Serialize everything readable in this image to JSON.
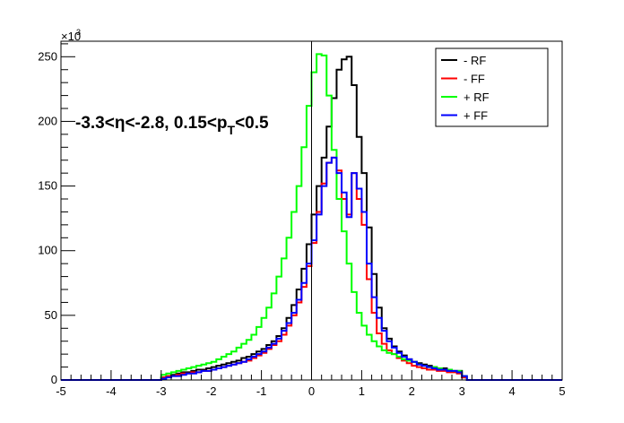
{
  "chart_data": {
    "type": "line",
    "title": "",
    "xlabel": "",
    "ylabel": "",
    "xlim": [
      -5,
      5
    ],
    "ylim": [
      0,
      262
    ],
    "y_multiplier_label": "×10",
    "y_multiplier_exp": "3",
    "grid": false,
    "legend_position": "top-right",
    "annotation": {
      "part1": "-3.3<η<-2.8, 0.15<p",
      "sub": "T",
      "part2": "<0.5"
    },
    "x_ticks": [
      "-5",
      "-4",
      "-3",
      "-2",
      "-1",
      "0",
      "1",
      "2",
      "3",
      "4",
      "5"
    ],
    "y_ticks": [
      "0",
      "50",
      "100",
      "150",
      "200",
      "250"
    ],
    "bin_width": 0.1,
    "x_start": -5.0,
    "series": [
      {
        "name": "- RF",
        "color": "#000000",
        "values": [
          0,
          0,
          0,
          0,
          0,
          0,
          0,
          0,
          0,
          0,
          0,
          0,
          0,
          0,
          0,
          0,
          0,
          0,
          0,
          0,
          2,
          3,
          4,
          5,
          6,
          6,
          7,
          8,
          8,
          9,
          10,
          11,
          12,
          13,
          14,
          15,
          17,
          18,
          20,
          22,
          24,
          27,
          30,
          34,
          40,
          48,
          58,
          70,
          86,
          105,
          128,
          150,
          172,
          196,
          218,
          240,
          248,
          250,
          228,
          188,
          160,
          118,
          82,
          56,
          40,
          32,
          26,
          22,
          19,
          16,
          14,
          13,
          12,
          11,
          10,
          9,
          9,
          8,
          7,
          7,
          2,
          0,
          0,
          0,
          0,
          0,
          0,
          0,
          0,
          0,
          0,
          0,
          0,
          0,
          0,
          0,
          0,
          0,
          0,
          0
        ]
      },
      {
        "name": "- FF",
        "color": "#ff0000",
        "values": [
          0,
          0,
          0,
          0,
          0,
          0,
          0,
          0,
          0,
          0,
          0,
          0,
          0,
          0,
          0,
          0,
          0,
          0,
          0,
          0,
          2,
          3,
          3,
          4,
          5,
          5,
          6,
          6,
          7,
          7,
          8,
          9,
          10,
          11,
          12,
          13,
          14,
          15,
          17,
          19,
          21,
          24,
          27,
          30,
          35,
          42,
          50,
          60,
          72,
          88,
          106,
          130,
          152,
          168,
          172,
          162,
          140,
          128,
          160,
          140,
          120,
          78,
          52,
          36,
          28,
          23,
          20,
          17,
          15,
          13,
          11,
          10,
          9,
          8,
          8,
          7,
          7,
          6,
          6,
          5,
          2,
          0,
          0,
          0,
          0,
          0,
          0,
          0,
          0,
          0,
          0,
          0,
          0,
          0,
          0,
          0,
          0,
          0,
          0,
          0
        ]
      },
      {
        "name": "+ RF",
        "color": "#00ff00",
        "values": [
          0,
          0,
          0,
          0,
          0,
          0,
          0,
          0,
          0,
          0,
          0,
          0,
          0,
          0,
          0,
          0,
          0,
          0,
          0,
          0,
          4,
          5,
          6,
          7,
          8,
          9,
          10,
          11,
          12,
          13,
          14,
          16,
          18,
          20,
          22,
          25,
          28,
          31,
          35,
          41,
          48,
          56,
          67,
          80,
          94,
          110,
          130,
          150,
          180,
          212,
          238,
          252,
          251,
          220,
          178,
          140,
          115,
          90,
          68,
          52,
          42,
          35,
          30,
          26,
          23,
          21,
          20,
          18,
          16,
          15,
          14,
          12,
          11,
          10,
          10,
          9,
          8,
          8,
          7,
          7,
          3,
          0,
          0,
          0,
          0,
          0,
          0,
          0,
          0,
          0,
          0,
          0,
          0,
          0,
          0,
          0,
          0,
          0,
          0,
          0
        ]
      },
      {
        "name": "+ FF",
        "color": "#0000ff",
        "values": [
          0,
          0,
          0,
          0,
          0,
          0,
          0,
          0,
          0,
          0,
          0,
          0,
          0,
          0,
          0,
          0,
          0,
          0,
          0,
          0,
          1,
          2,
          3,
          3,
          4,
          5,
          5,
          6,
          7,
          7,
          8,
          9,
          10,
          11,
          12,
          13,
          14,
          16,
          18,
          20,
          22,
          25,
          28,
          32,
          38,
          44,
          52,
          62,
          75,
          90,
          108,
          128,
          150,
          168,
          172,
          160,
          145,
          126,
          160,
          148,
          130,
          90,
          64,
          48,
          38,
          30,
          25,
          21,
          18,
          16,
          14,
          12,
          11,
          10,
          9,
          8,
          8,
          7,
          7,
          6,
          3,
          0,
          0,
          0,
          0,
          0,
          0,
          0,
          0,
          0,
          0,
          0,
          0,
          0,
          0,
          0,
          0,
          0,
          0,
          0
        ]
      }
    ]
  }
}
